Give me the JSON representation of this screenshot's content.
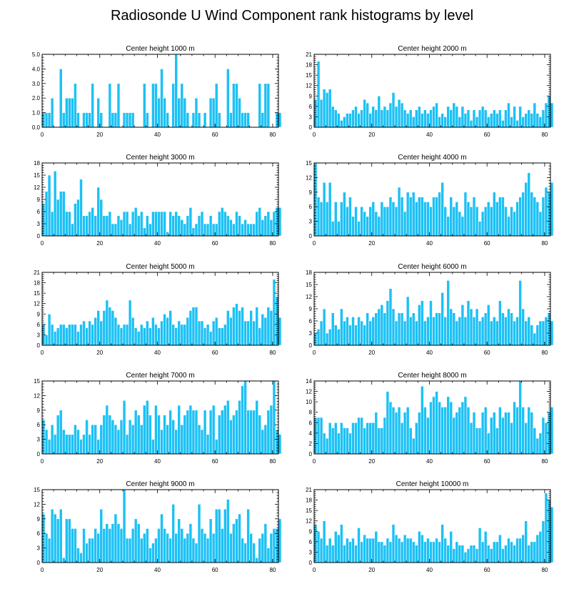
{
  "title": "Radiosonde U Wind Component rank histograms by level",
  "colors": {
    "bar": "#1cc1f5",
    "bar_edge": "#ffffff",
    "axis": "#000000"
  },
  "chart_data": [
    {
      "type": "bar",
      "title": "Center height 1000 m",
      "x_start": 0,
      "xlim": [
        0,
        82
      ],
      "x_ticks": [
        0,
        20,
        40,
        60,
        80
      ],
      "ylim": [
        0,
        5
      ],
      "y_ticks": [
        0,
        1,
        2,
        3,
        4,
        5
      ],
      "y_tick_labels": [
        "0.0",
        "1.0",
        "2.0",
        "3.0",
        "4.0",
        "5.0"
      ],
      "values": [
        1,
        1,
        1,
        2,
        0,
        0,
        4,
        1,
        2,
        2,
        2,
        3,
        1,
        0,
        1,
        1,
        1,
        3,
        0,
        2,
        1,
        0,
        0,
        3,
        1,
        1,
        3,
        0,
        1,
        1,
        1,
        1,
        0,
        0,
        0,
        3,
        1,
        0,
        3,
        3,
        2,
        4,
        2,
        1,
        0,
        3,
        5,
        2,
        3,
        2,
        1,
        0,
        1,
        2,
        1,
        0,
        1,
        0,
        2,
        2,
        3,
        1,
        0,
        0,
        4,
        1,
        3,
        3,
        2,
        1,
        1,
        1,
        0,
        0,
        0,
        3,
        1,
        3,
        3,
        0,
        0,
        1,
        1
      ]
    },
    {
      "type": "bar",
      "title": "Center height 2000 m",
      "x_start": 0,
      "xlim": [
        0,
        82
      ],
      "x_ticks": [
        0,
        20,
        40,
        60,
        80
      ],
      "ylim": [
        0,
        21
      ],
      "y_ticks": [
        0,
        3,
        6,
        9,
        12,
        15,
        18,
        21
      ],
      "values": [
        8,
        19,
        8,
        11,
        10,
        11,
        6,
        5,
        4,
        2,
        3,
        4,
        4,
        5,
        6,
        4,
        5,
        8,
        7,
        4,
        6,
        5,
        9,
        5,
        6,
        5,
        7,
        10,
        6,
        8,
        7,
        5,
        4,
        5,
        3,
        5,
        6,
        4,
        5,
        4,
        5,
        6,
        7,
        3,
        4,
        3,
        6,
        5,
        7,
        6,
        3,
        6,
        4,
        5,
        2,
        5,
        3,
        5,
        6,
        5,
        3,
        4,
        5,
        4,
        5,
        2,
        5,
        7,
        3,
        6,
        2,
        6,
        3,
        4,
        5,
        4,
        7,
        4,
        3,
        5,
        7,
        9,
        7
      ]
    },
    {
      "type": "bar",
      "title": "Center height 3000 m",
      "x_start": 0,
      "xlim": [
        0,
        82
      ],
      "x_ticks": [
        0,
        20,
        40,
        60,
        80
      ],
      "ylim": [
        0,
        18
      ],
      "y_ticks": [
        0,
        3,
        6,
        9,
        12,
        15,
        18
      ],
      "values": [
        8,
        11,
        15,
        6,
        16,
        9,
        11,
        11,
        6,
        6,
        3,
        8,
        9,
        14,
        5,
        5,
        6,
        7,
        5,
        12,
        9,
        5,
        5,
        6,
        3,
        3,
        5,
        4,
        6,
        6,
        3,
        6,
        7,
        5,
        6,
        2,
        5,
        3,
        6,
        6,
        6,
        6,
        6,
        1,
        6,
        5,
        6,
        5,
        4,
        3,
        5,
        7,
        2,
        3,
        5,
        6,
        3,
        3,
        5,
        3,
        3,
        6,
        7,
        6,
        5,
        4,
        3,
        6,
        5,
        3,
        4,
        3,
        3,
        3,
        6,
        7,
        4,
        5,
        6,
        4,
        6,
        7,
        7
      ]
    },
    {
      "type": "bar",
      "title": "Center height 4000 m",
      "x_start": 0,
      "xlim": [
        0,
        82
      ],
      "x_ticks": [
        0,
        20,
        40,
        60,
        80
      ],
      "ylim": [
        0,
        15
      ],
      "y_ticks": [
        0,
        3,
        6,
        9,
        12,
        15
      ],
      "values": [
        15,
        8,
        7,
        11,
        7,
        11,
        3,
        7,
        3,
        7,
        9,
        6,
        8,
        4,
        6,
        3,
        6,
        5,
        4,
        6,
        7,
        5,
        4,
        7,
        6,
        6,
        8,
        7,
        6,
        10,
        8,
        5,
        9,
        8,
        9,
        7,
        8,
        8,
        7,
        7,
        6,
        8,
        8,
        9,
        11,
        6,
        4,
        8,
        6,
        7,
        5,
        4,
        9,
        7,
        6,
        8,
        6,
        3,
        5,
        6,
        7,
        6,
        9,
        7,
        8,
        8,
        6,
        4,
        6,
        5,
        7,
        8,
        9,
        11,
        13,
        9,
        8,
        7,
        5,
        8,
        10,
        9,
        11
      ]
    },
    {
      "type": "bar",
      "title": "Center height 5000 m",
      "x_start": 0,
      "xlim": [
        0,
        82
      ],
      "x_ticks": [
        0,
        20,
        40,
        60,
        80
      ],
      "ylim": [
        0,
        21
      ],
      "y_ticks": [
        0,
        3,
        6,
        9,
        12,
        15,
        18,
        21
      ],
      "values": [
        6,
        3,
        9,
        6,
        4,
        5,
        6,
        6,
        5,
        6,
        6,
        6,
        4,
        6,
        7,
        5,
        7,
        6,
        8,
        10,
        7,
        10,
        13,
        11,
        10,
        8,
        6,
        5,
        6,
        6,
        13,
        8,
        5,
        4,
        6,
        5,
        7,
        5,
        8,
        6,
        5,
        7,
        9,
        8,
        10,
        6,
        5,
        7,
        6,
        6,
        8,
        10,
        11,
        11,
        7,
        7,
        5,
        6,
        4,
        7,
        8,
        5,
        5,
        6,
        10,
        8,
        11,
        12,
        10,
        11,
        7,
        7,
        10,
        7,
        11,
        5,
        9,
        8,
        11,
        10,
        19,
        14,
        8
      ]
    },
    {
      "type": "bar",
      "title": "Center height 6000 m",
      "x_start": 0,
      "xlim": [
        0,
        82
      ],
      "x_ticks": [
        0,
        20,
        40,
        60,
        80
      ],
      "ylim": [
        0,
        18
      ],
      "y_ticks": [
        0,
        3,
        6,
        9,
        12,
        15,
        18
      ],
      "values": [
        3,
        4,
        6,
        9,
        3,
        4,
        8,
        5,
        4,
        9,
        6,
        7,
        5,
        7,
        5,
        7,
        6,
        5,
        8,
        6,
        7,
        8,
        9,
        10,
        8,
        11,
        14,
        9,
        6,
        8,
        8,
        6,
        12,
        7,
        8,
        6,
        10,
        11,
        6,
        7,
        11,
        7,
        8,
        8,
        13,
        7,
        16,
        9,
        8,
        6,
        7,
        10,
        7,
        11,
        9,
        7,
        9,
        6,
        7,
        8,
        10,
        6,
        7,
        6,
        11,
        8,
        7,
        9,
        8,
        6,
        7,
        16,
        9,
        6,
        7,
        5,
        3,
        5,
        6,
        6,
        7,
        8,
        6
      ]
    },
    {
      "type": "bar",
      "title": "Center height 7000 m",
      "x_start": 0,
      "xlim": [
        0,
        82
      ],
      "x_ticks": [
        0,
        20,
        40,
        60,
        80
      ],
      "ylim": [
        0,
        15
      ],
      "y_ticks": [
        0,
        3,
        6,
        9,
        12,
        15
      ],
      "values": [
        7,
        5,
        3,
        6,
        4,
        8,
        9,
        5,
        4,
        4,
        4,
        6,
        5,
        3,
        4,
        7,
        4,
        6,
        6,
        3,
        6,
        8,
        10,
        8,
        7,
        6,
        5,
        7,
        11,
        4,
        7,
        6,
        9,
        8,
        6,
        10,
        11,
        8,
        3,
        10,
        8,
        5,
        8,
        6,
        9,
        7,
        5,
        10,
        6,
        8,
        9,
        10,
        9,
        9,
        6,
        5,
        9,
        4,
        9,
        10,
        3,
        8,
        9,
        10,
        11,
        7,
        8,
        9,
        11,
        14,
        15,
        9,
        9,
        9,
        11,
        8,
        5,
        6,
        9,
        10,
        15,
        5,
        4
      ]
    },
    {
      "type": "bar",
      "title": "Center height 8000 m",
      "x_start": 0,
      "xlim": [
        0,
        82
      ],
      "x_ticks": [
        0,
        20,
        40,
        60,
        80
      ],
      "ylim": [
        0,
        14
      ],
      "y_ticks": [
        0,
        2,
        4,
        6,
        8,
        10,
        12,
        14
      ],
      "values": [
        7,
        7,
        7,
        4,
        3,
        6,
        5,
        6,
        4,
        6,
        5,
        5,
        4,
        6,
        6,
        7,
        7,
        5,
        6,
        6,
        6,
        8,
        5,
        5,
        7,
        12,
        10,
        9,
        8,
        9,
        6,
        8,
        9,
        5,
        3,
        6,
        8,
        13,
        9,
        7,
        10,
        11,
        12,
        10,
        9,
        9,
        11,
        10,
        7,
        8,
        9,
        10,
        11,
        9,
        6,
        8,
        5,
        5,
        8,
        9,
        4,
        7,
        8,
        5,
        9,
        7,
        8,
        8,
        6,
        10,
        9,
        14,
        9,
        6,
        9,
        8,
        5,
        3,
        4,
        7,
        6,
        8,
        9
      ]
    },
    {
      "type": "bar",
      "title": "Center height 9000 m",
      "x_start": 0,
      "xlim": [
        0,
        82
      ],
      "x_ticks": [
        0,
        20,
        40,
        60,
        80
      ],
      "ylim": [
        0,
        15
      ],
      "y_ticks": [
        0,
        3,
        6,
        9,
        12,
        15
      ],
      "values": [
        10,
        6,
        5,
        11,
        10,
        9,
        11,
        1,
        9,
        9,
        7,
        7,
        3,
        2,
        7,
        4,
        5,
        5,
        7,
        6,
        11,
        7,
        8,
        7,
        8,
        10,
        8,
        7,
        15,
        5,
        5,
        7,
        9,
        8,
        5,
        6,
        7,
        3,
        4,
        5,
        7,
        10,
        7,
        6,
        5,
        12,
        6,
        9,
        7,
        5,
        6,
        8,
        5,
        4,
        12,
        7,
        6,
        5,
        9,
        6,
        11,
        11,
        7,
        11,
        13,
        6,
        8,
        9,
        10,
        5,
        4,
        11,
        6,
        4,
        1,
        5,
        6,
        8,
        3,
        6,
        7,
        7,
        9
      ]
    },
    {
      "type": "bar",
      "title": "Center height 10000 m",
      "x_start": 0,
      "xlim": [
        0,
        82
      ],
      "x_ticks": [
        0,
        20,
        40,
        60,
        80
      ],
      "ylim": [
        0,
        21
      ],
      "y_ticks": [
        0,
        3,
        6,
        9,
        12,
        15,
        18,
        21
      ],
      "values": [
        11,
        9,
        7,
        12,
        5,
        7,
        5,
        9,
        8,
        11,
        5,
        7,
        6,
        7,
        5,
        10,
        6,
        8,
        7,
        7,
        7,
        9,
        6,
        6,
        5,
        7,
        6,
        11,
        8,
        7,
        6,
        8,
        7,
        7,
        6,
        5,
        9,
        8,
        6,
        7,
        6,
        6,
        7,
        6,
        11,
        7,
        5,
        9,
        4,
        6,
        5,
        5,
        3,
        4,
        5,
        5,
        4,
        10,
        6,
        9,
        5,
        4,
        6,
        6,
        8,
        4,
        5,
        7,
        6,
        5,
        7,
        7,
        8,
        12,
        5,
        6,
        6,
        8,
        9,
        12,
        20,
        18,
        16
      ]
    }
  ]
}
